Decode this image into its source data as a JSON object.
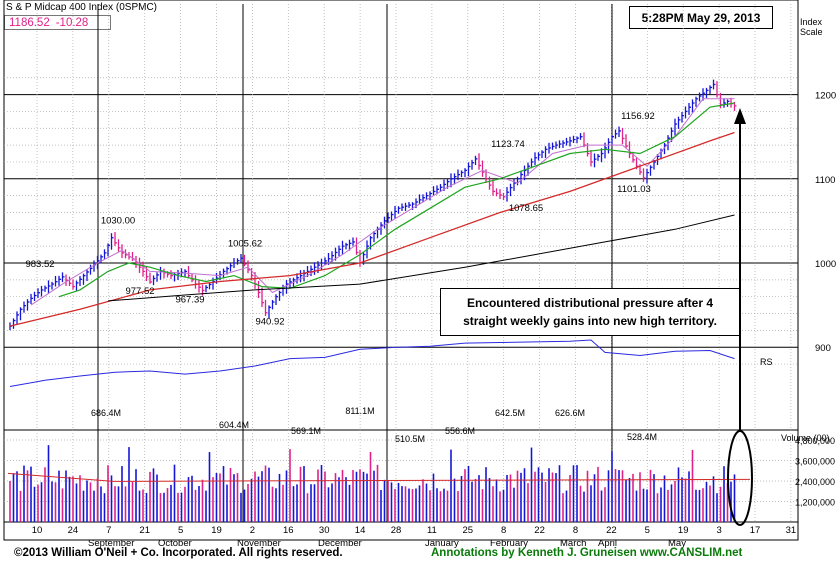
{
  "header": {
    "title": "S & P Midcap 400 Index  (0SPMC)",
    "price": "1186.52",
    "change": "-10.28"
  },
  "timestamp": "5:28PM May 29, 2013",
  "scale_label": [
    "Index",
    "Scale"
  ],
  "annotation": {
    "line1": "Encountered distributional pressure after 4",
    "line2": "straight weekly gains into new high territory."
  },
  "footer": {
    "copyright": "©2013 William O'Neil + Co. Incorporated. All rights reserved.",
    "credit": "Annotations by Kenneth J. Gruneisen  www.CANSLIM.net"
  },
  "colors": {
    "up": "#1515d8",
    "down": "#e0218a",
    "ma50": "#1fa51f",
    "ma200": "#d42a2a",
    "rs": "#2a2ae0",
    "accent": "#e0218a"
  },
  "chart_data": {
    "type": "bar",
    "title": "S & P Midcap 400 Index  (0SPMC)",
    "price_axis": {
      "ticks": [
        900,
        1000,
        1100,
        1200
      ],
      "label": "Index Scale",
      "ylim": [
        860,
        1235
      ]
    },
    "volume_axis": {
      "label": "Volume (00)",
      "ticks": [
        "1,200,000",
        "2,400,000",
        "3,600,000",
        "4,800,000"
      ]
    },
    "x_labels": [
      {
        "day": "10"
      },
      {
        "day": "24"
      },
      {
        "day": "7"
      },
      {
        "day": "21"
      },
      {
        "day": "5"
      },
      {
        "day": "19"
      },
      {
        "day": "2"
      },
      {
        "day": "16"
      },
      {
        "day": "30"
      },
      {
        "day": "14"
      },
      {
        "day": "28"
      },
      {
        "day": "11"
      },
      {
        "day": "25"
      },
      {
        "day": "8"
      },
      {
        "day": "22"
      },
      {
        "day": "8"
      },
      {
        "day": "22"
      },
      {
        "day": "5"
      },
      {
        "day": "19"
      },
      {
        "day": "3"
      },
      {
        "day": "17"
      },
      {
        "day": "31"
      }
    ],
    "months": [
      "September",
      "October",
      "November",
      "December",
      "January",
      "February",
      "March",
      "April",
      "May"
    ],
    "price_labels": [
      {
        "text": "983.52",
        "price": 983.52
      },
      {
        "text": "1030.00",
        "price": 1030.0
      },
      {
        "text": "977.52",
        "price": 977.52
      },
      {
        "text": "967.39",
        "price": 967.39
      },
      {
        "text": "1005.62",
        "price": 1005.62
      },
      {
        "text": "940.92",
        "price": 940.92
      },
      {
        "text": "1123.74",
        "price": 1123.74
      },
      {
        "text": "1078.65",
        "price": 1078.65
      },
      {
        "text": "1156.92",
        "price": 1156.92
      },
      {
        "text": "1101.03",
        "price": 1101.03
      }
    ],
    "volume_labels": [
      "686.4M",
      "604.4M",
      "569.1M",
      "811.1M",
      "510.5M",
      "556.6M",
      "642.5M",
      "626.6M",
      "528.4M"
    ],
    "rs_label": "RS",
    "price_path": [
      [
        0,
        925
      ],
      [
        3,
        945
      ],
      [
        6,
        958
      ],
      [
        9,
        968
      ],
      [
        12,
        975
      ],
      [
        15,
        983.5
      ],
      [
        18,
        972
      ],
      [
        21,
        985
      ],
      [
        24,
        998
      ],
      [
        27,
        1012
      ],
      [
        29,
        1030
      ],
      [
        32,
        1012
      ],
      [
        35,
        1005
      ],
      [
        38,
        990
      ],
      [
        40,
        977.5
      ],
      [
        43,
        990
      ],
      [
        46,
        985
      ],
      [
        50,
        990
      ],
      [
        53,
        975
      ],
      [
        55,
        967.4
      ],
      [
        58,
        978
      ],
      [
        61,
        990
      ],
      [
        64,
        1000
      ],
      [
        66,
        1005.6
      ],
      [
        69,
        985
      ],
      [
        71,
        965
      ],
      [
        73,
        940.9
      ],
      [
        76,
        960
      ],
      [
        79,
        975
      ],
      [
        83,
        985
      ],
      [
        87,
        995
      ],
      [
        91,
        1005
      ],
      [
        95,
        1020
      ],
      [
        98,
        1025
      ],
      [
        100,
        1000
      ],
      [
        103,
        1030
      ],
      [
        107,
        1050
      ],
      [
        111,
        1065
      ],
      [
        115,
        1070
      ],
      [
        119,
        1080
      ],
      [
        123,
        1090
      ],
      [
        126,
        1100
      ],
      [
        130,
        1110
      ],
      [
        133,
        1123.7
      ],
      [
        136,
        1100
      ],
      [
        138,
        1085
      ],
      [
        141,
        1078.6
      ],
      [
        144,
        1095
      ],
      [
        147,
        1110
      ],
      [
        150,
        1125
      ],
      [
        153,
        1135
      ],
      [
        156,
        1140
      ],
      [
        160,
        1145
      ],
      [
        163,
        1150
      ],
      [
        166,
        1120
      ],
      [
        169,
        1130
      ],
      [
        172,
        1150
      ],
      [
        174,
        1156.9
      ],
      [
        177,
        1130
      ],
      [
        179,
        1115
      ],
      [
        181,
        1101
      ],
      [
        184,
        1120
      ],
      [
        187,
        1140
      ],
      [
        190,
        1165
      ],
      [
        193,
        1180
      ],
      [
        196,
        1195
      ],
      [
        199,
        1205
      ],
      [
        201,
        1212
      ],
      [
        203,
        1188
      ],
      [
        205,
        1192
      ],
      [
        207,
        1186.5
      ]
    ],
    "ma50_path": [
      [
        14,
        960
      ],
      [
        20,
        968
      ],
      [
        28,
        990
      ],
      [
        34,
        1000
      ],
      [
        40,
        995
      ],
      [
        48,
        985
      ],
      [
        56,
        978
      ],
      [
        64,
        985
      ],
      [
        72,
        972
      ],
      [
        80,
        970
      ],
      [
        90,
        985
      ],
      [
        100,
        1010
      ],
      [
        110,
        1040
      ],
      [
        120,
        1065
      ],
      [
        130,
        1090
      ],
      [
        140,
        1100
      ],
      [
        150,
        1115
      ],
      [
        160,
        1130
      ],
      [
        170,
        1135
      ],
      [
        180,
        1130
      ],
      [
        190,
        1150
      ],
      [
        200,
        1185
      ],
      [
        207,
        1190
      ]
    ],
    "ma200_path": [
      [
        0,
        925
      ],
      [
        20,
        945
      ],
      [
        40,
        968
      ],
      [
        60,
        978
      ],
      [
        80,
        985
      ],
      [
        100,
        1000
      ],
      [
        120,
        1030
      ],
      [
        140,
        1060
      ],
      [
        160,
        1085
      ],
      [
        180,
        1115
      ],
      [
        200,
        1145
      ],
      [
        207,
        1155
      ]
    ],
    "ma50_black_path": [
      [
        28,
        955
      ],
      [
        50,
        962
      ],
      [
        70,
        968
      ],
      [
        100,
        975
      ],
      [
        130,
        995
      ],
      [
        150,
        1010
      ],
      [
        170,
        1025
      ],
      [
        190,
        1040
      ],
      [
        207,
        1057
      ]
    ],
    "ma10_path": [
      [
        6,
        950
      ],
      [
        15,
        975
      ],
      [
        25,
        1000
      ],
      [
        32,
        1015
      ],
      [
        40,
        990
      ],
      [
        50,
        988
      ],
      [
        60,
        985
      ],
      [
        68,
        995
      ],
      [
        75,
        965
      ],
      [
        85,
        985
      ],
      [
        95,
        1010
      ],
      [
        105,
        1040
      ],
      [
        115,
        1065
      ],
      [
        125,
        1090
      ],
      [
        135,
        1110
      ],
      [
        145,
        1095
      ],
      [
        155,
        1130
      ],
      [
        165,
        1140
      ],
      [
        175,
        1140
      ],
      [
        182,
        1115
      ],
      [
        190,
        1150
      ],
      [
        198,
        1195
      ],
      [
        207,
        1195
      ]
    ],
    "rs_path": [
      [
        0,
        0.25
      ],
      [
        10,
        0.35
      ],
      [
        20,
        0.42
      ],
      [
        30,
        0.48
      ],
      [
        40,
        0.5
      ],
      [
        50,
        0.45
      ],
      [
        60,
        0.5
      ],
      [
        70,
        0.58
      ],
      [
        80,
        0.7
      ],
      [
        90,
        0.72
      ],
      [
        100,
        0.85
      ],
      [
        110,
        0.88
      ],
      [
        120,
        0.9
      ],
      [
        130,
        0.95
      ],
      [
        140,
        0.96
      ],
      [
        150,
        0.97
      ],
      [
        160,
        0.98
      ],
      [
        166,
        1.0
      ],
      [
        170,
        0.8
      ],
      [
        180,
        0.75
      ],
      [
        190,
        0.82
      ],
      [
        200,
        0.83
      ],
      [
        207,
        0.7
      ]
    ],
    "volume_ma": 0.52
  }
}
